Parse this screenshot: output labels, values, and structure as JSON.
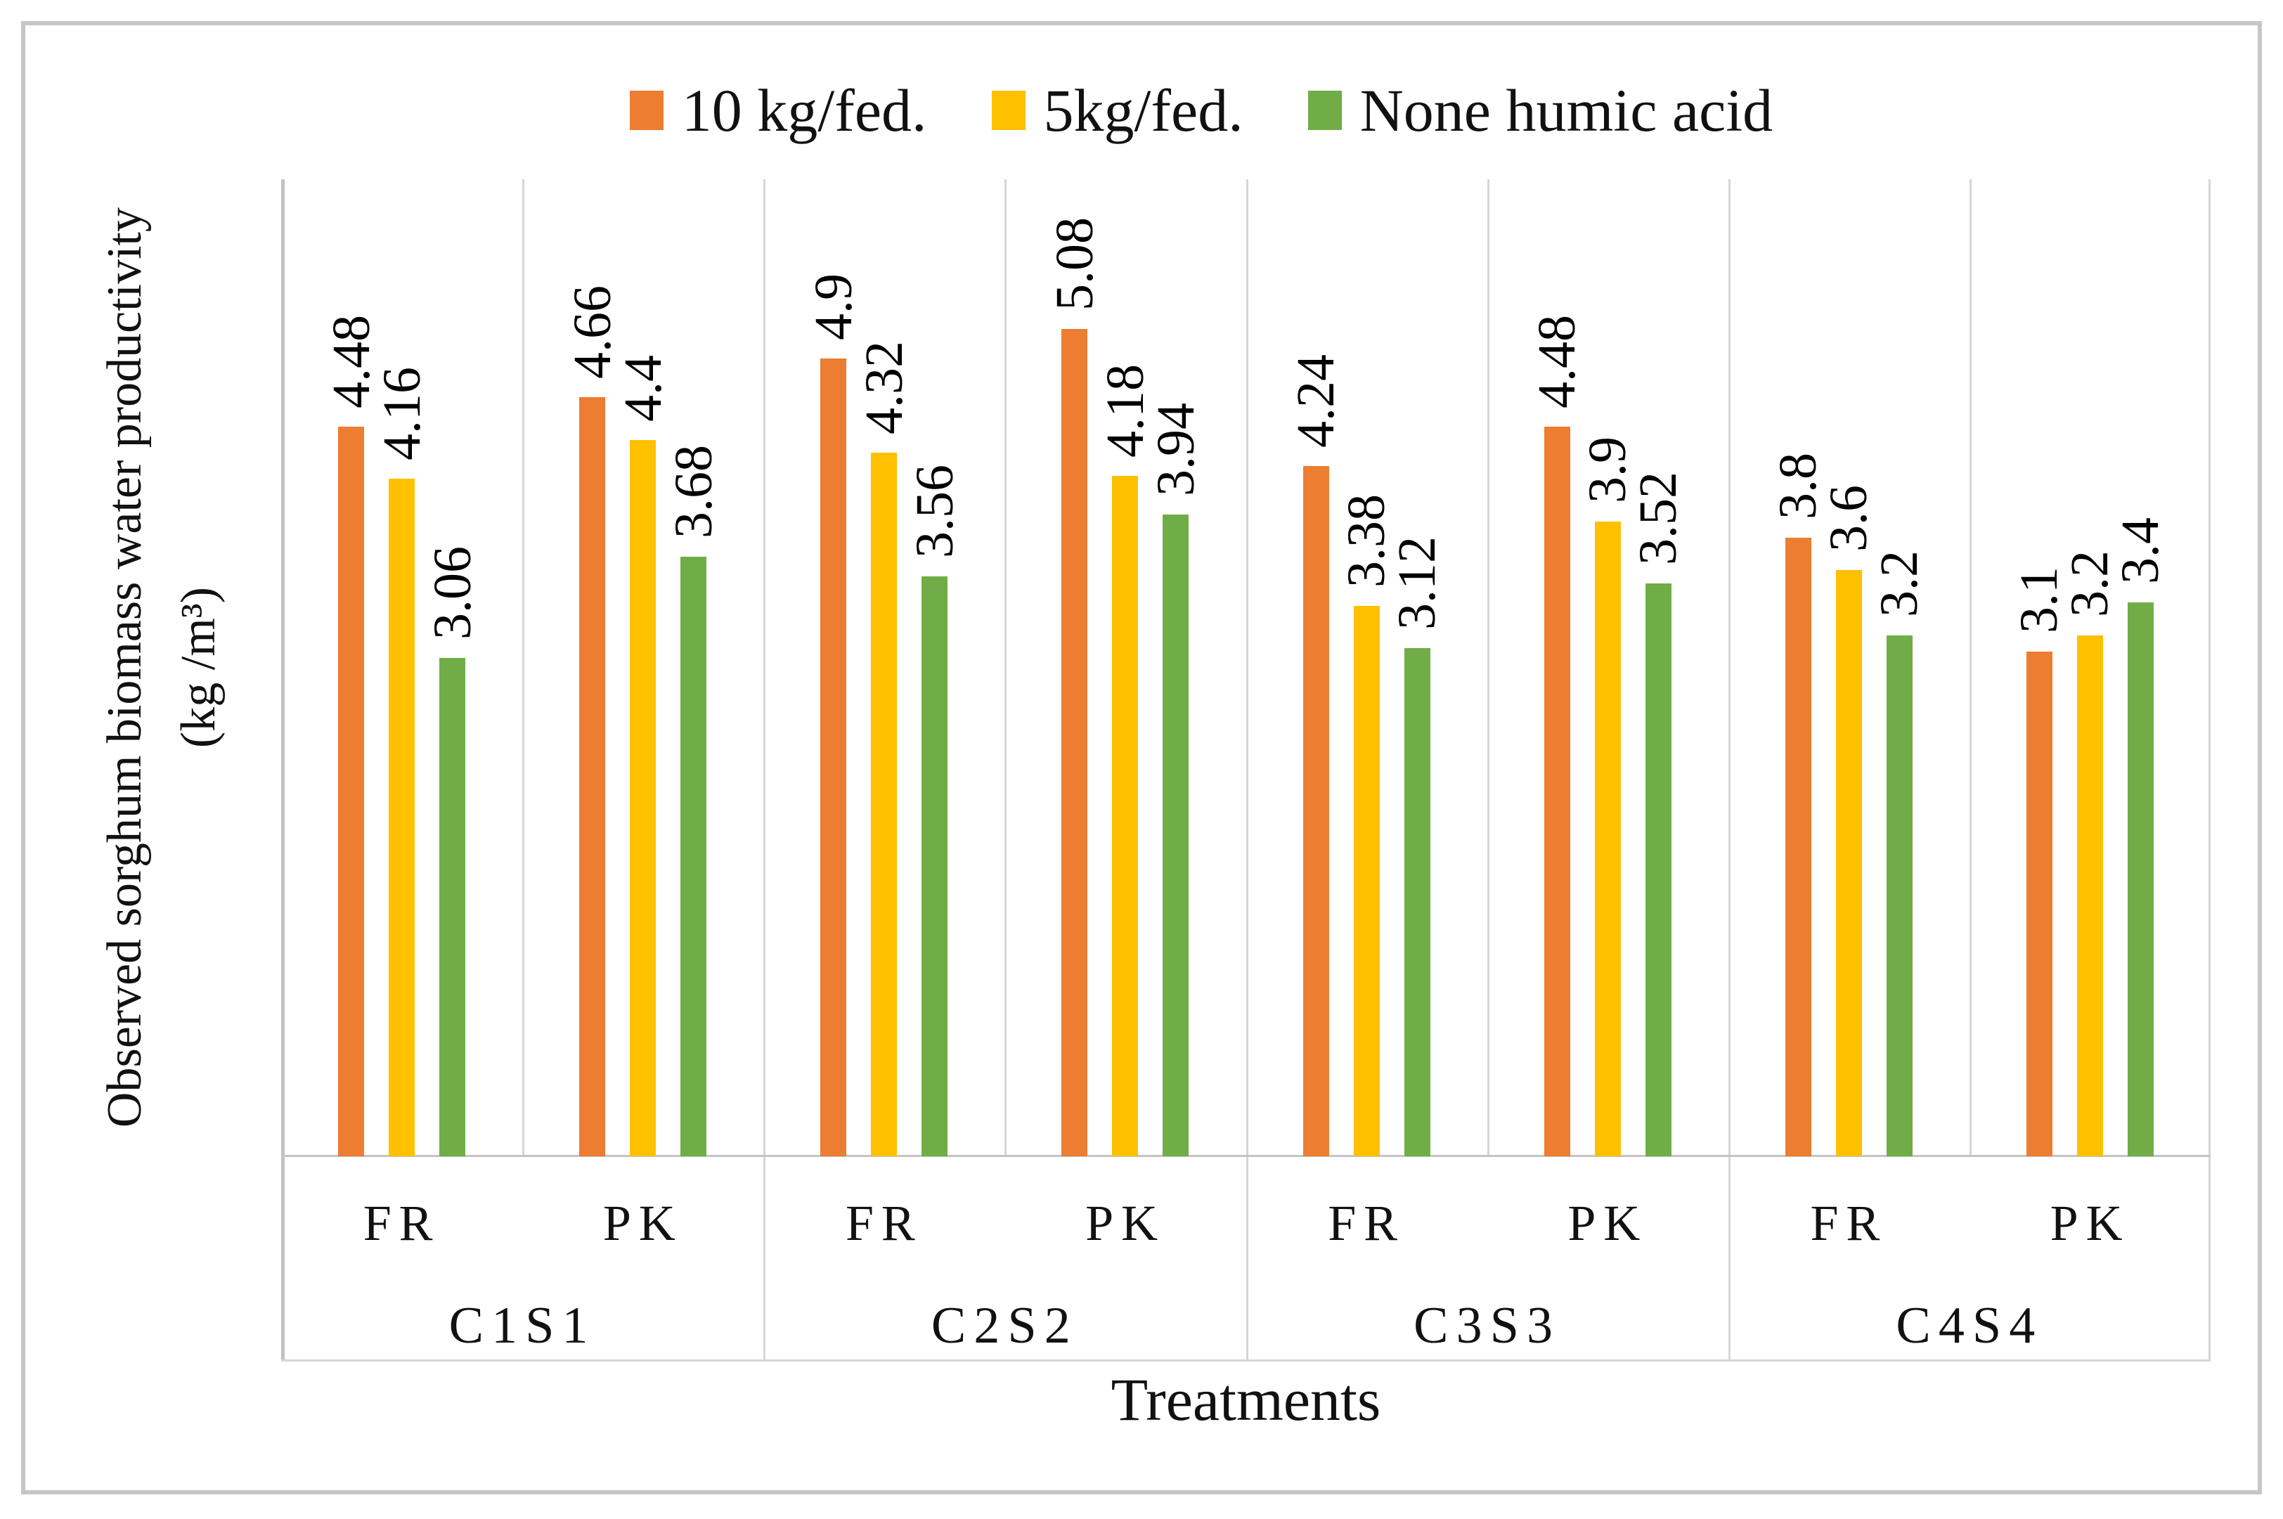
{
  "figure": {
    "background": "#ffffff",
    "border_color": "#c6c6c6"
  },
  "legend": {
    "position": "top",
    "items": [
      {
        "label": "10 kg/fed.",
        "color": "#ED7D31"
      },
      {
        "label": "5kg/fed.",
        "color": "#FFC000"
      },
      {
        "label": "None humic acid",
        "color": "#70AD47"
      }
    ]
  },
  "chart_data": {
    "type": "bar",
    "title": "",
    "ylabel_line1": "Observed sorghum biomass water productivity",
    "ylabel_line2": "(kg /m³)",
    "xlabel": "Treatments",
    "ylim": [
      0,
      6
    ],
    "y_axis_tick_labels_visible": false,
    "value_label_style": "rotated 90° above bar",
    "gridlines": "vertical category separators only",
    "colors": {
      "orange": "#ED7D31",
      "yellow": "#FFC000",
      "green": "#70AD47"
    },
    "series": [
      {
        "name": "10 kg/fed.",
        "color": "#ED7D31",
        "values": [
          4.48,
          4.66,
          4.9,
          5.08,
          4.24,
          4.48,
          3.8,
          3.1
        ]
      },
      {
        "name": "5kg/fed.",
        "color": "#FFC000",
        "values": [
          4.16,
          4.4,
          4.32,
          4.18,
          3.38,
          3.9,
          3.6,
          3.2
        ]
      },
      {
        "name": "None humic acid",
        "color": "#70AD47",
        "values": [
          3.06,
          3.68,
          3.56,
          3.94,
          3.12,
          3.52,
          3.2,
          3.4
        ]
      }
    ],
    "groups": [
      {
        "label": "C1S1",
        "cells": [
          {
            "label": "FR",
            "values": [
              "4.48",
              "4.16",
              "3.06"
            ]
          },
          {
            "label": "PK",
            "values": [
              "4.66",
              "4.4",
              "3.68"
            ]
          }
        ]
      },
      {
        "label": "C2S2",
        "cells": [
          {
            "label": "FR",
            "values": [
              "4.9",
              "4.32",
              "3.56"
            ]
          },
          {
            "label": "PK",
            "values": [
              "5.08",
              "4.18",
              "3.94"
            ]
          }
        ]
      },
      {
        "label": "C3S3",
        "cells": [
          {
            "label": "FR",
            "values": [
              "4.24",
              "3.38",
              "3.12"
            ]
          },
          {
            "label": "PK",
            "values": [
              "4.48",
              "3.9",
              "3.52"
            ]
          }
        ]
      },
      {
        "label": "C4S4",
        "cells": [
          {
            "label": "FR",
            "values": [
              "3.8",
              "3.6",
              "3.2"
            ]
          },
          {
            "label": "PK",
            "values": [
              "3.1",
              "3.2",
              "3.4"
            ]
          }
        ]
      }
    ]
  }
}
